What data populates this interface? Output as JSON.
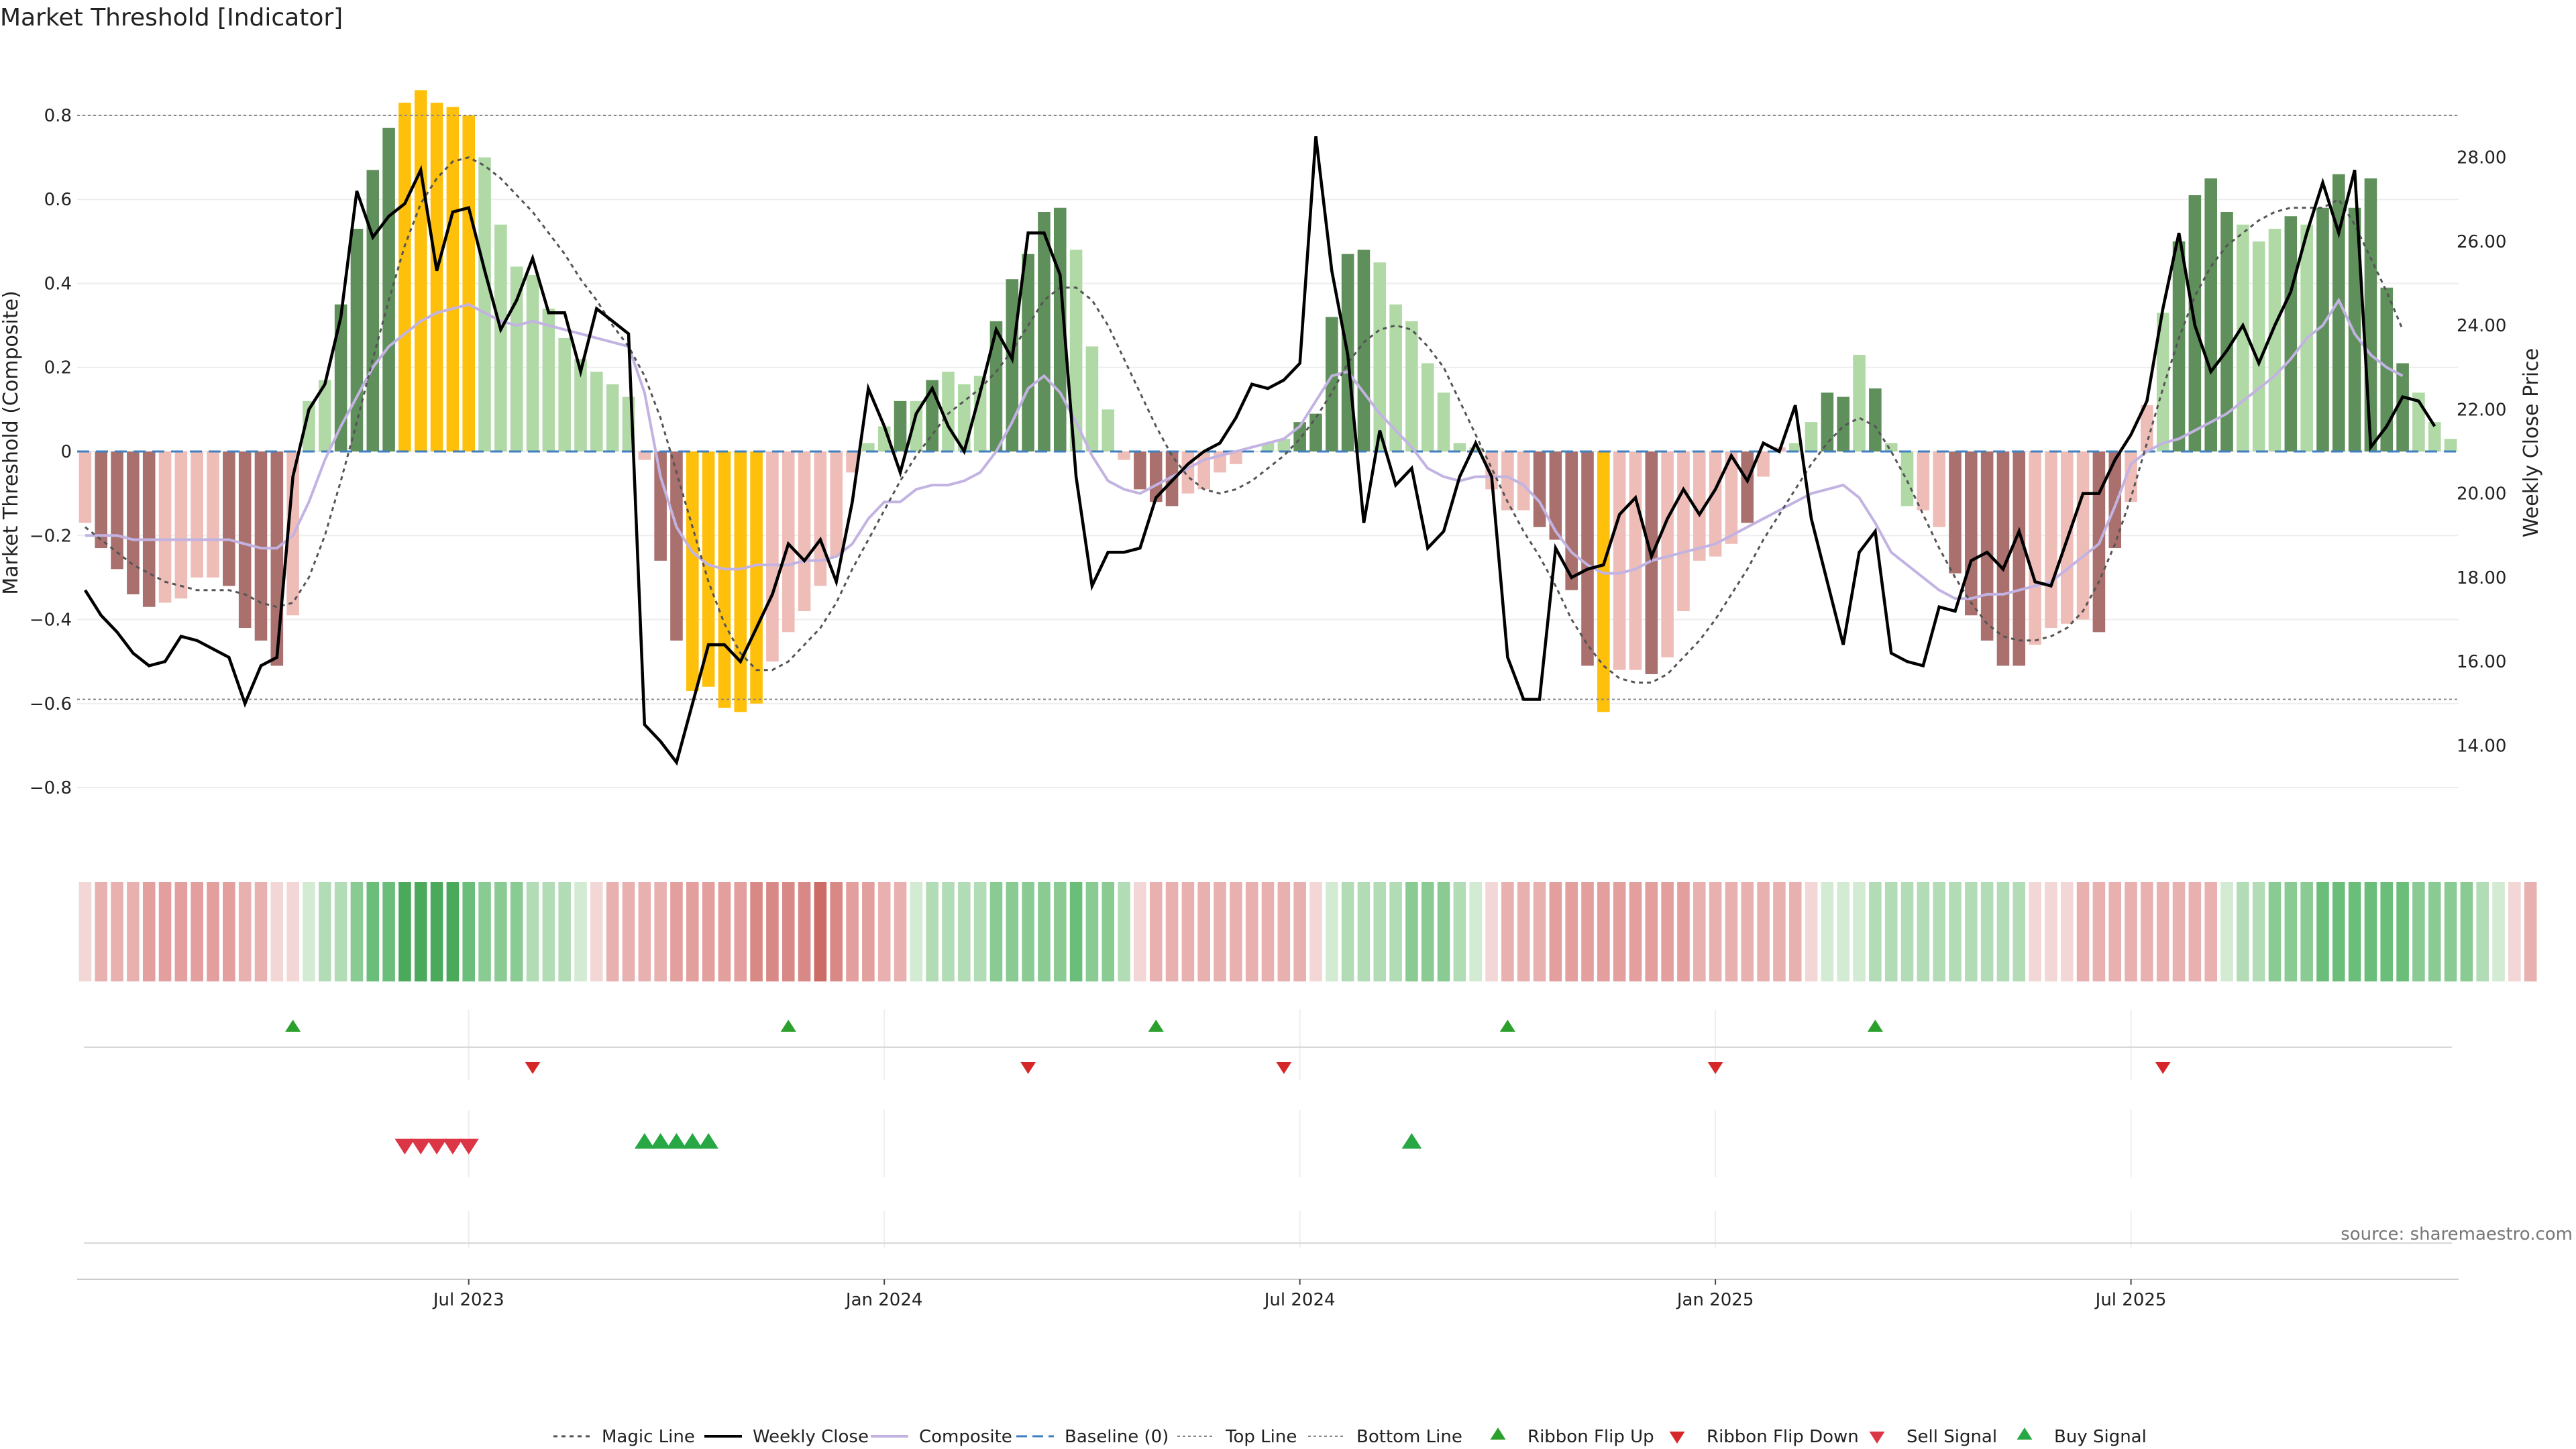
{
  "chart_data": {
    "type": "bar",
    "title": "Market Threshold [Indicator]",
    "ylabel_left": "Market Threshold (Composite)",
    "ylabel_right": "Weekly Close Price",
    "ylim_left": [
      -0.95,
      0.95
    ],
    "ylim_right": [
      11.5,
      30.5
    ],
    "yticks_left": [
      0.8,
      0.6,
      0.4,
      0.2,
      0,
      -0.2,
      -0.4,
      -0.6,
      -0.8
    ],
    "ytick_labels_left": [
      "0.8",
      "0.6",
      "0.4",
      "0.2",
      "0",
      "−0.2",
      "−0.4",
      "−0.6",
      "−0.8"
    ],
    "yticks_right": [
      28,
      26,
      24,
      22,
      20,
      18,
      16,
      14
    ],
    "ytick_labels_right": [
      "28.00",
      "26.00",
      "24.00",
      "22.00",
      "20.00",
      "18.00",
      "16.00",
      "14.00"
    ],
    "top_line": 0.8,
    "bottom_line": -0.59,
    "x_tick_weeks": [
      24.5,
      50.5,
      76.5,
      102.5,
      128.5
    ],
    "x_tick_labels": [
      "Jul 2023",
      "Jan 2024",
      "Jul 2024",
      "Jan 2025",
      "Jul 2025"
    ],
    "bars": [
      -0.17,
      -0.23,
      -0.28,
      -0.34,
      -0.37,
      -0.36,
      -0.35,
      -0.3,
      -0.3,
      -0.32,
      -0.42,
      -0.45,
      -0.51,
      -0.39,
      0.12,
      0.17,
      0.35,
      0.53,
      0.67,
      0.77,
      0.83,
      0.86,
      0.83,
      0.82,
      0.8,
      0.7,
      0.54,
      0.44,
      0.42,
      0.34,
      0.27,
      0.22,
      0.19,
      0.16,
      0.13,
      -0.02,
      -0.26,
      -0.45,
      -0.57,
      -0.56,
      -0.61,
      -0.62,
      -0.6,
      -0.5,
      -0.43,
      -0.38,
      -0.32,
      -0.25,
      -0.05,
      0.02,
      0.06,
      0.12,
      0.12,
      0.17,
      0.19,
      0.16,
      0.18,
      0.31,
      0.41,
      0.47,
      0.57,
      0.58,
      0.48,
      0.25,
      0.1,
      -0.02,
      -0.09,
      -0.12,
      -0.13,
      -0.1,
      -0.09,
      -0.05,
      -0.03,
      0.0,
      0.02,
      0.03,
      0.07,
      0.09,
      0.32,
      0.47,
      0.48,
      0.45,
      0.35,
      0.31,
      0.21,
      0.14,
      0.02,
      0.01,
      -0.09,
      -0.14,
      -0.14,
      -0.18,
      -0.21,
      -0.33,
      -0.51,
      -0.62,
      -0.52,
      -0.52,
      -0.53,
      -0.49,
      -0.38,
      -0.26,
      -0.25,
      -0.22,
      -0.17,
      -0.06,
      0.01,
      0.02,
      0.07,
      0.14,
      0.13,
      0.23,
      0.15,
      0.02,
      -0.13,
      -0.14,
      -0.18,
      -0.29,
      -0.39,
      -0.45,
      -0.51,
      -0.51,
      -0.46,
      -0.42,
      -0.41,
      -0.4,
      -0.43,
      -0.23,
      -0.12,
      0.11,
      0.33,
      0.5,
      0.61,
      0.65,
      0.57,
      0.54,
      0.5,
      0.53,
      0.56,
      0.54,
      0.58,
      0.66,
      0.58,
      0.65,
      0.39,
      0.21,
      0.14,
      0.07,
      0.03
    ],
    "bar_class": [
      "lr",
      "dr",
      "dr",
      "dr",
      "dr",
      "lr",
      "lr",
      "lr",
      "lr",
      "dr",
      "dr",
      "dr",
      "dr",
      "lr",
      "lg",
      "lg",
      "dg",
      "dg",
      "dg",
      "dg",
      "y",
      "y",
      "y",
      "y",
      "y",
      "lg",
      "lg",
      "lg",
      "lg",
      "lg",
      "lg",
      "lg",
      "lg",
      "lg",
      "lg",
      "lr",
      "dr",
      "dr",
      "y",
      "y",
      "y",
      "y",
      "y",
      "lr",
      "lr",
      "lr",
      "lr",
      "lr",
      "lr",
      "lg",
      "lg",
      "dg",
      "lg",
      "dg",
      "lg",
      "lg",
      "lg",
      "dg",
      "dg",
      "dg",
      "dg",
      "dg",
      "lg",
      "lg",
      "lg",
      "lr",
      "dr",
      "dr",
      "dr",
      "lr",
      "lr",
      "lr",
      "lr",
      "lg",
      "lg",
      "lg",
      "dg",
      "dg",
      "dg",
      "dg",
      "dg",
      "lg",
      "lg",
      "lg",
      "lg",
      "lg",
      "lg",
      "lg",
      "lr",
      "lr",
      "lr",
      "dr",
      "dr",
      "dr",
      "dr",
      "y",
      "lr",
      "lr",
      "dr",
      "lr",
      "lr",
      "lr",
      "lr",
      "lr",
      "dr",
      "lr",
      "lr",
      "lg",
      "lg",
      "dg",
      "dg",
      "lg",
      "dg",
      "lg",
      "lg",
      "lr",
      "lr",
      "dr",
      "dr",
      "dr",
      "dr",
      "dr",
      "lr",
      "lr",
      "lr",
      "lr",
      "dr",
      "dr",
      "lr",
      "lr",
      "lg",
      "dg",
      "dg",
      "dg",
      "dg",
      "lg",
      "lg",
      "lg",
      "dg",
      "lg",
      "dg",
      "dg",
      "dg",
      "dg",
      "dg",
      "dg",
      "lg",
      "lg",
      "lg",
      "lg"
    ],
    "weekly_close": [
      17.7,
      17.1,
      16.7,
      16.2,
      15.9,
      16.0,
      16.6,
      16.5,
      16.3,
      16.1,
      15.0,
      15.9,
      16.1,
      20.4,
      22.0,
      22.6,
      24.2,
      27.2,
      26.1,
      26.6,
      26.9,
      27.7,
      25.3,
      26.7,
      26.8,
      25.3,
      23.9,
      24.6,
      25.6,
      24.3,
      24.3,
      22.9,
      24.4,
      24.1,
      23.8,
      14.5,
      14.1,
      13.6,
      15.0,
      16.4,
      16.4,
      16.0,
      16.8,
      17.6,
      18.8,
      18.4,
      18.9,
      17.9,
      19.8,
      22.5,
      21.6,
      20.5,
      21.9,
      22.5,
      21.6,
      21.0,
      22.4,
      23.9,
      23.2,
      26.2,
      26.2,
      25.2,
      20.4,
      17.8,
      18.6,
      18.6,
      18.7,
      19.9,
      20.3,
      20.7,
      21.0,
      21.2,
      21.8,
      22.6,
      22.5,
      22.7,
      23.1,
      28.5,
      25.3,
      23.3,
      19.3,
      21.5,
      20.2,
      20.6,
      18.7,
      19.1,
      20.4,
      21.2,
      20.4,
      16.1,
      15.1,
      15.1,
      18.7,
      18.0,
      18.2,
      18.3,
      19.5,
      19.9,
      18.5,
      19.4,
      20.1,
      19.5,
      20.1,
      20.9,
      20.3,
      21.2,
      21.0,
      22.1,
      19.4,
      17.9,
      16.4,
      18.6,
      19.1,
      16.2,
      16.0,
      15.9,
      17.3,
      17.2,
      18.4,
      18.6,
      18.2,
      19.1,
      17.9,
      17.8,
      18.9,
      20.0,
      20.0,
      20.8,
      21.4,
      22.2,
      24.4,
      26.2,
      24.0,
      22.9,
      23.4,
      24.0,
      23.1,
      24.0,
      24.8,
      26.2,
      27.4,
      26.2,
      27.7,
      21.1,
      21.6,
      22.3,
      22.2,
      21.6
    ],
    "magic_line": [
      -0.18,
      -0.21,
      -0.24,
      -0.27,
      -0.29,
      -0.31,
      -0.32,
      -0.33,
      -0.33,
      -0.33,
      -0.34,
      -0.36,
      -0.37,
      -0.36,
      -0.3,
      -0.2,
      -0.07,
      0.07,
      0.22,
      0.36,
      0.49,
      0.59,
      0.65,
      0.69,
      0.7,
      0.68,
      0.65,
      0.61,
      0.57,
      0.52,
      0.47,
      0.41,
      0.36,
      0.3,
      0.25,
      0.18,
      0.08,
      -0.05,
      -0.18,
      -0.31,
      -0.41,
      -0.48,
      -0.52,
      -0.52,
      -0.5,
      -0.46,
      -0.42,
      -0.36,
      -0.28,
      -0.21,
      -0.14,
      -0.07,
      -0.01,
      0.04,
      0.09,
      0.12,
      0.15,
      0.19,
      0.24,
      0.3,
      0.36,
      0.39,
      0.39,
      0.36,
      0.3,
      0.22,
      0.14,
      0.06,
      -0.01,
      -0.06,
      -0.09,
      -0.1,
      -0.09,
      -0.07,
      -0.04,
      -0.01,
      0.03,
      0.08,
      0.14,
      0.21,
      0.26,
      0.29,
      0.3,
      0.29,
      0.25,
      0.2,
      0.12,
      0.04,
      -0.04,
      -0.12,
      -0.19,
      -0.25,
      -0.32,
      -0.4,
      -0.46,
      -0.51,
      -0.54,
      -0.55,
      -0.55,
      -0.53,
      -0.49,
      -0.45,
      -0.4,
      -0.34,
      -0.28,
      -0.21,
      -0.15,
      -0.09,
      -0.03,
      0.02,
      0.06,
      0.08,
      0.06,
      0.0,
      -0.07,
      -0.15,
      -0.23,
      -0.3,
      -0.36,
      -0.41,
      -0.44,
      -0.45,
      -0.45,
      -0.44,
      -0.42,
      -0.38,
      -0.31,
      -0.22,
      -0.11,
      0.02,
      0.15,
      0.27,
      0.37,
      0.44,
      0.49,
      0.52,
      0.55,
      0.57,
      0.58,
      0.58,
      0.58,
      0.6,
      0.54,
      0.46,
      0.38,
      0.29
    ],
    "composite": [
      -0.2,
      -0.2,
      -0.2,
      -0.21,
      -0.21,
      -0.21,
      -0.21,
      -0.21,
      -0.21,
      -0.21,
      -0.22,
      -0.23,
      -0.23,
      -0.2,
      -0.12,
      -0.02,
      0.06,
      0.13,
      0.2,
      0.25,
      0.28,
      0.31,
      0.33,
      0.34,
      0.35,
      0.33,
      0.31,
      0.3,
      0.31,
      0.3,
      0.29,
      0.28,
      0.27,
      0.26,
      0.25,
      0.14,
      -0.06,
      -0.18,
      -0.24,
      -0.27,
      -0.28,
      -0.28,
      -0.27,
      -0.27,
      -0.27,
      -0.26,
      -0.26,
      -0.25,
      -0.22,
      -0.16,
      -0.12,
      -0.12,
      -0.09,
      -0.08,
      -0.08,
      -0.07,
      -0.05,
      0.0,
      0.07,
      0.15,
      0.18,
      0.14,
      0.07,
      -0.01,
      -0.07,
      -0.09,
      -0.1,
      -0.08,
      -0.06,
      -0.04,
      -0.02,
      -0.01,
      0.0,
      0.01,
      0.02,
      0.03,
      0.06,
      0.12,
      0.18,
      0.19,
      0.14,
      0.09,
      0.05,
      0.01,
      -0.04,
      -0.06,
      -0.07,
      -0.06,
      -0.06,
      -0.06,
      -0.08,
      -0.12,
      -0.19,
      -0.24,
      -0.27,
      -0.29,
      -0.29,
      -0.28,
      -0.26,
      -0.25,
      -0.24,
      -0.23,
      -0.22,
      -0.2,
      -0.18,
      -0.16,
      -0.14,
      -0.12,
      -0.1,
      -0.09,
      -0.08,
      -0.11,
      -0.17,
      -0.24,
      -0.27,
      -0.3,
      -0.33,
      -0.35,
      -0.35,
      -0.34,
      -0.34,
      -0.33,
      -0.32,
      -0.31,
      -0.28,
      -0.25,
      -0.22,
      -0.13,
      -0.03,
      0.0,
      0.02,
      0.03,
      0.05,
      0.07,
      0.09,
      0.12,
      0.15,
      0.18,
      0.22,
      0.27,
      0.3,
      0.36,
      0.28,
      0.23,
      0.2,
      0.18
    ],
    "ribbon": [
      "r1",
      "r2",
      "r2",
      "r2",
      "r3",
      "r3",
      "r3",
      "r3",
      "r3",
      "r3",
      "r2",
      "r2",
      "r1",
      "r1",
      "g1",
      "g2",
      "g2",
      "g3",
      "g4",
      "g4",
      "g5",
      "g5",
      "g5",
      "g5",
      "g4",
      "g3",
      "g3",
      "g3",
      "g2",
      "g2",
      "g2",
      "g1",
      "r1",
      "r2",
      "r2",
      "r2",
      "r2",
      "r3",
      "r3",
      "r3",
      "r3",
      "r3",
      "r4",
      "r4",
      "r4",
      "r4",
      "r5",
      "r4",
      "r3",
      "r3",
      "r2",
      "r2",
      "g1",
      "g2",
      "g2",
      "g2",
      "g2",
      "g3",
      "g3",
      "g3",
      "g3",
      "g3",
      "g4",
      "g3",
      "g3",
      "g2",
      "r1",
      "r2",
      "r2",
      "r2",
      "r2",
      "r2",
      "r2",
      "r2",
      "r2",
      "r2",
      "r2",
      "r1",
      "g1",
      "g2",
      "g2",
      "g2",
      "g2",
      "g3",
      "g3",
      "g3",
      "g2",
      "g1",
      "r1",
      "r2",
      "r2",
      "r2",
      "r3",
      "r3",
      "r3",
      "r3",
      "r3",
      "r3",
      "r3",
      "r3",
      "r3",
      "r2",
      "r2",
      "r2",
      "r2",
      "r2",
      "r2",
      "r2",
      "r1",
      "g1",
      "g1",
      "g1",
      "g2",
      "g2",
      "g2",
      "g2",
      "g2",
      "g2",
      "g2",
      "g2",
      "g2",
      "g2",
      "r1",
      "r1",
      "r1",
      "r2",
      "r2",
      "r2",
      "r2",
      "r2",
      "r2",
      "r2",
      "r2",
      "r2",
      "g1",
      "g2",
      "g2",
      "g3",
      "g3",
      "g3",
      "g4",
      "g4",
      "g4",
      "g4",
      "g4",
      "g4",
      "g3",
      "g3",
      "g3",
      "g3",
      "g2",
      "g1",
      "r1",
      "r2"
    ],
    "ribbon_flip_up_weeks": [
      13,
      44,
      67,
      89,
      112
    ],
    "ribbon_flip_down_weeks": [
      28,
      59,
      75,
      102,
      130
    ],
    "sell_signal_weeks": [
      20,
      21,
      22,
      23,
      24
    ],
    "buy_signal_weeks": [
      35,
      36,
      37,
      38,
      39,
      83
    ],
    "legend": [
      "Magic Line",
      "Weekly Close",
      "Composite",
      "Baseline (0)",
      "Top Line",
      "Bottom Line",
      "Ribbon Flip Up",
      "Ribbon Flip Down",
      "Sell Signal",
      "Buy Signal"
    ],
    "source": "source: sharemaestro.com",
    "colors": {
      "dark_red": "#a9706d",
      "light_red": "#efbdb8",
      "dark_green": "#5f8f5a",
      "light_green": "#b0d9a6",
      "yellow": "#fec00a",
      "close": "#000000",
      "magic": "#555555",
      "composite": "#c2b3e2",
      "baseline": "#3f7fbf",
      "grid": "#eeeeee",
      "up_marker": "#2ca02c",
      "down_marker": "#d62728",
      "sell_marker": "#dc3545",
      "buy_marker": "#28a745",
      "ribbon_shades": {
        "r1": "#f3d6d6",
        "r2": "#e8b1b0",
        "r3": "#e29f9d",
        "r4": "#d98985",
        "r5": "#cd6c67",
        "g1": "#d3ebd3",
        "g2": "#b2dcb6",
        "g3": "#8acb93",
        "g4": "#6bbe7a",
        "g5": "#4aa95b"
      }
    }
  }
}
